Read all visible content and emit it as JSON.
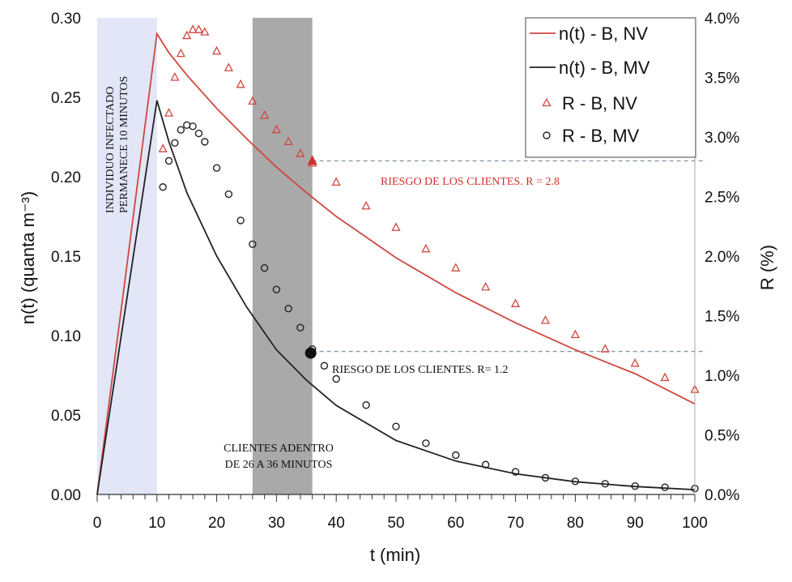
{
  "chart_data": {
    "type": "line",
    "xlabel": "t (min)",
    "ylabel_left": "n(t) (quanta m⁻³)",
    "ylabel_right": "R (%)",
    "xlim": [
      0,
      100
    ],
    "ylim_left": [
      0,
      0.3
    ],
    "ylim_right": [
      0,
      4.0
    ],
    "x_ticks": [
      "0",
      "10",
      "20",
      "30",
      "40",
      "50",
      "60",
      "70",
      "80",
      "90",
      "100"
    ],
    "y_left_ticks": [
      "0.00",
      "0.05",
      "0.10",
      "0.15",
      "0.20",
      "0.25",
      "0.30"
    ],
    "y_right_ticks": [
      "0.0%",
      "0.5%",
      "1.0%",
      "1.5%",
      "2.0%",
      "2.5%",
      "3.0%",
      "3.5%",
      "4.0%"
    ],
    "grid": false,
    "legend_position": "top-right",
    "shaded_regions": [
      {
        "from": 0,
        "to": 10,
        "color": "#e2e6f7",
        "label": "INDIVIDUO INFECTADO PERMANECE 10 MINUTOS"
      },
      {
        "from": 26,
        "to": 36,
        "color": "#a9a9a9",
        "label": "CLIENTES ADENTRO DE 26 A 36 MINUTOS"
      }
    ],
    "series": [
      {
        "name": "n(t) - B, NV",
        "axis": "left",
        "style": "line",
        "color": "#d0473f",
        "x": [
          0,
          10,
          12,
          15,
          20,
          25,
          30,
          35,
          36,
          40,
          50,
          60,
          70,
          80,
          90,
          100
        ],
        "values": [
          0,
          0.29,
          0.278,
          0.264,
          0.243,
          0.224,
          0.206,
          0.19,
          0.187,
          0.175,
          0.149,
          0.127,
          0.108,
          0.091,
          0.076,
          0.057
        ]
      },
      {
        "name": "n(t) - B, MV",
        "axis": "left",
        "style": "line",
        "color": "#222222",
        "x": [
          0,
          10,
          12,
          15,
          20,
          25,
          30,
          35,
          40,
          50,
          60,
          70,
          80,
          90,
          100
        ],
        "values": [
          0,
          0.248,
          0.222,
          0.19,
          0.15,
          0.118,
          0.091,
          0.072,
          0.056,
          0.034,
          0.021,
          0.013,
          0.008,
          0.005,
          0.003
        ]
      },
      {
        "name": "R - B, NV",
        "axis": "right",
        "style": "triangle",
        "color": "#d0473f",
        "x": [
          11,
          12,
          13,
          14,
          15,
          16,
          17,
          18,
          20,
          22,
          24,
          26,
          28,
          30,
          32,
          34,
          36,
          40,
          45,
          50,
          55,
          60,
          65,
          70,
          75,
          80,
          85,
          90,
          95,
          100
        ],
        "values": [
          2.9,
          3.2,
          3.5,
          3.7,
          3.85,
          3.9,
          3.9,
          3.88,
          3.72,
          3.58,
          3.44,
          3.3,
          3.18,
          3.06,
          2.96,
          2.86,
          2.78,
          2.62,
          2.42,
          2.24,
          2.06,
          1.9,
          1.74,
          1.6,
          1.46,
          1.34,
          1.22,
          1.1,
          0.98,
          0.88
        ]
      },
      {
        "name": "R - B, MV",
        "axis": "right",
        "style": "circle",
        "color": "#222222",
        "x": [
          11,
          12,
          13,
          14,
          15,
          16,
          17,
          18,
          20,
          22,
          24,
          26,
          28,
          30,
          32,
          34,
          36,
          38,
          40,
          45,
          50,
          55,
          60,
          65,
          70,
          75,
          80,
          85,
          90,
          95,
          100
        ],
        "values": [
          2.58,
          2.8,
          2.95,
          3.06,
          3.1,
          3.09,
          3.03,
          2.96,
          2.74,
          2.52,
          2.3,
          2.1,
          1.9,
          1.72,
          1.56,
          1.4,
          1.22,
          1.08,
          0.97,
          0.75,
          0.57,
          0.43,
          0.33,
          0.25,
          0.19,
          0.14,
          0.11,
          0.09,
          0.07,
          0.06,
          0.05
        ]
      }
    ],
    "annotations": [
      {
        "text": "RIESGO DE LOS CLIENTES.  R = 2.8",
        "color": "#d0302a",
        "marker_x": 36,
        "marker_R": 2.8
      },
      {
        "text": "RIESGO DE LOS CLIENTES. R= 1.2",
        "color": "#111111",
        "marker_x": 36,
        "marker_R": 1.2
      }
    ]
  }
}
